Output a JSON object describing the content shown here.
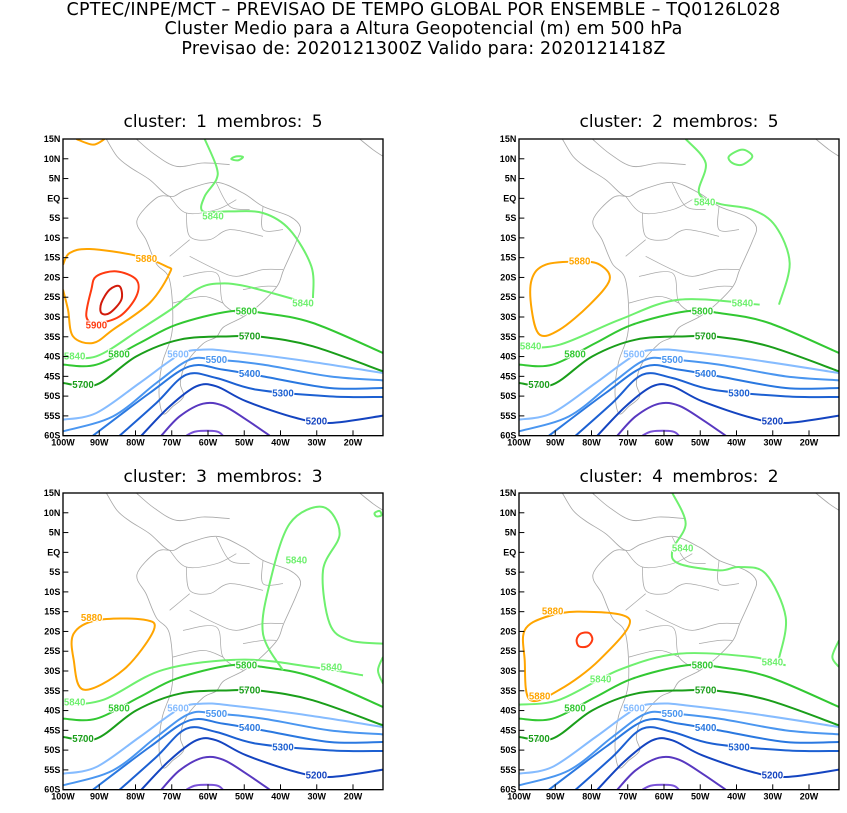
{
  "header": {
    "line1": "CPTEC/INPE/MCT – PREVISAO DE TEMPO GLOBAL POR ENSEMBLE – TQ0126L028",
    "line2": "Cluster Medio para a Altura Geopotencial (m) em 500 hPa",
    "line3": "Previsao de: 2020121300Z    Valido para: 2020121418Z"
  },
  "lat_ticks": [
    "15N",
    "10N",
    "5N",
    "EQ",
    "5S",
    "10S",
    "15S",
    "20S",
    "25S",
    "30S",
    "35S",
    "40S",
    "45S",
    "50S",
    "55S",
    "60S"
  ],
  "lon_ticks": [
    "100W",
    "90W",
    "80W",
    "70W",
    "60W",
    "50W",
    "40W",
    "30W",
    "20W"
  ],
  "colors": {
    "5920": "#d21a0a",
    "5900": "#ff3a10",
    "5880": "#ffa500",
    "5840": "#6ef06e",
    "5800": "#32c832",
    "5700": "#1a9e1a",
    "5600": "#86bcff",
    "5500": "#4a96f0",
    "5400": "#2a78e0",
    "5300": "#1c60d2",
    "5200": "#1444c0",
    "5100": "#5838c0",
    "5000": "#7a52d8",
    "coast": "#a8a8a8"
  },
  "panels": [
    {
      "title": "cluster:  1   membros:  5",
      "labels": [
        {
          "level": "5900",
          "text": "5900"
        },
        {
          "level": "5880",
          "text": "5880"
        },
        {
          "level": "5840",
          "text": "5840"
        },
        {
          "level": "5840",
          "text": "5840"
        },
        {
          "level": "5840",
          "text": "5840"
        },
        {
          "level": "5800",
          "text": "5800"
        },
        {
          "level": "5800",
          "text": "5800"
        },
        {
          "level": "5700",
          "text": "5700"
        },
        {
          "level": "5700",
          "text": "5700"
        },
        {
          "level": "5600",
          "text": "5600"
        },
        {
          "level": "5500",
          "text": "5500"
        },
        {
          "level": "5400",
          "text": "5400"
        },
        {
          "level": "5300",
          "text": "5300"
        },
        {
          "level": "5200",
          "text": "5200"
        }
      ]
    },
    {
      "title": "cluster:  2   membros:  5",
      "labels": [
        {
          "level": "5880",
          "text": "5880"
        },
        {
          "level": "5840",
          "text": "5840"
        },
        {
          "level": "5840",
          "text": "5840"
        },
        {
          "level": "5840",
          "text": "5840"
        },
        {
          "level": "5800",
          "text": "5800"
        },
        {
          "level": "5800",
          "text": "5800"
        },
        {
          "level": "5700",
          "text": "5700"
        },
        {
          "level": "5700",
          "text": "5700"
        },
        {
          "level": "5600",
          "text": "5600"
        },
        {
          "level": "5500",
          "text": "5500"
        },
        {
          "level": "5400",
          "text": "5400"
        },
        {
          "level": "5300",
          "text": "5300"
        },
        {
          "level": "5200",
          "text": "5200"
        }
      ]
    },
    {
      "title": "cluster:  3   membros:  3",
      "labels": [
        {
          "level": "5880",
          "text": "5880"
        },
        {
          "level": "5840",
          "text": "5840"
        },
        {
          "level": "5840",
          "text": "5840"
        },
        {
          "level": "5840",
          "text": "5840"
        },
        {
          "level": "5800",
          "text": "5800"
        },
        {
          "level": "5800",
          "text": "5800"
        },
        {
          "level": "5700",
          "text": "5700"
        },
        {
          "level": "5700",
          "text": "5700"
        },
        {
          "level": "5600",
          "text": "5600"
        },
        {
          "level": "5500",
          "text": "5500"
        },
        {
          "level": "5400",
          "text": "5400"
        },
        {
          "level": "5300",
          "text": "5300"
        },
        {
          "level": "5200",
          "text": "5200"
        }
      ]
    },
    {
      "title": "cluster:  4   membros:  2",
      "labels": [
        {
          "level": "5880",
          "text": "5880"
        },
        {
          "level": "5880",
          "text": "5880"
        },
        {
          "level": "5840",
          "text": "5840"
        },
        {
          "level": "5840",
          "text": "5840"
        },
        {
          "level": "5840",
          "text": "5840"
        },
        {
          "level": "5800",
          "text": "5800"
        },
        {
          "level": "5800",
          "text": "5800"
        },
        {
          "level": "5700",
          "text": "5700"
        },
        {
          "level": "5700",
          "text": "5700"
        },
        {
          "level": "5600",
          "text": "5600"
        },
        {
          "level": "5500",
          "text": "5500"
        },
        {
          "level": "5400",
          "text": "5400"
        },
        {
          "level": "5300",
          "text": "5300"
        },
        {
          "level": "5200",
          "text": "5200"
        }
      ]
    }
  ]
}
